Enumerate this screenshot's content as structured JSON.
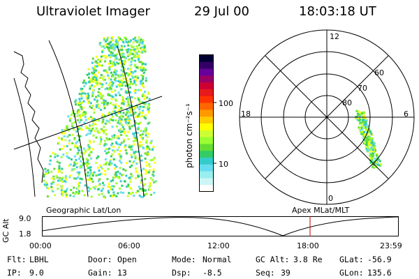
{
  "header": {
    "instrument": "Ultraviolet Imager",
    "date": "29 Jul 00",
    "time": "18:03:18 UT"
  },
  "colorbar": {
    "label": "photon cm⁻²s⁻¹",
    "tick_100": "100",
    "tick_10": "10",
    "colors": [
      "#000033",
      "#330066",
      "#660099",
      "#990066",
      "#cc0033",
      "#e61a1a",
      "#ff3300",
      "#ff6600",
      "#ff9900",
      "#ffcc00",
      "#ffff00",
      "#ccff33",
      "#99ff33",
      "#66dd33",
      "#33cc66",
      "#33cccc",
      "#66ddee",
      "#99eeee",
      "#ccf6f6",
      "#ffffff"
    ]
  },
  "polar": {
    "label_12": "12",
    "label_18": "18",
    "label_6": "6",
    "label_0": "0",
    "lat_60": "60",
    "lat_70": "70",
    "lat_80": "80"
  },
  "timeline": {
    "axis_label": "GC Alt",
    "y_top": "9.0",
    "y_bottom": "1.8",
    "left_label": "Geographic Lat/Lon",
    "right_label": "Apex MLat/MLT",
    "times": [
      "00:00",
      "06:00",
      "12:00",
      "18:00",
      "23:59"
    ]
  },
  "info": {
    "flt_label": "Flt:",
    "flt_value": "LBHL",
    "ip_label": "IP:",
    "ip_value": "9.0",
    "door_label": "Door:",
    "door_value": "Open",
    "gain_label": "Gain:",
    "gain_value": "13",
    "mode_label": "Mode:",
    "mode_value": "Normal",
    "dsp_label": "Dsp:",
    "dsp_value": "-8.5",
    "gcalt_label": "GC Alt:",
    "gcalt_value": "3.8 Re",
    "seq_label": "Seq:",
    "seq_value": "39",
    "glat_label": "GLat:",
    "glat_value": "-56.9",
    "glon_label": "GLon:",
    "glon_value": "135.6"
  }
}
